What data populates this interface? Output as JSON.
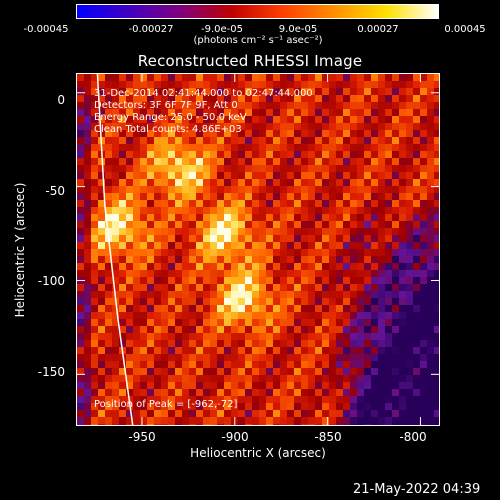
{
  "colorbar": {
    "tick_labels": [
      "-0.00045",
      "-0.00027",
      "-9.0e-05",
      "9.0e-05",
      "0.00027",
      "0.00045"
    ],
    "units": "(photons cm⁻² s⁻¹ asec⁻²)",
    "colors": [
      "#0000ff",
      "#4000c0",
      "#800080",
      "#c00000",
      "#ff4000",
      "#ff9000",
      "#ffe000",
      "#ffffff"
    ]
  },
  "title": "Reconstructed RHESSI Image",
  "overlay": {
    "time_range": "31-Dec-2014 02:41:44.000 to 02:47:44.000",
    "detectors": "Detectors: 3F 6F 7F 9F, Att 0",
    "energy": "Energy Range: 25.0 - 50.0 keV",
    "method": "Clean     Total counts: 4.86E+03",
    "peak": "Position of Peak = [-962,-72]"
  },
  "axes": {
    "xlabel": "Heliocentric X (arcsec)",
    "ylabel": "Heliocentric Y (arcsec)",
    "xticks": [
      "-950",
      "-900",
      "-850",
      "-800"
    ],
    "yticks": [
      "0",
      "-50",
      "-100",
      "-150"
    ],
    "xlim": [
      -985,
      -790
    ],
    "ylim": [
      -177,
      10
    ]
  },
  "timestamp": "21-May-2022 04:39",
  "image": {
    "hot_spots": [
      {
        "x": -962,
        "y": -72
      },
      {
        "x": -905,
        "y": -75
      },
      {
        "x": -895,
        "y": -110
      },
      {
        "x": -930,
        "y": -40
      }
    ],
    "cold_region_x_from": -850,
    "limb_curve": [
      {
        "x": -974,
        "y": 10
      },
      {
        "x": -970,
        "y": -60
      },
      {
        "x": -963,
        "y": -120
      },
      {
        "x": -955,
        "y": -177
      }
    ]
  }
}
